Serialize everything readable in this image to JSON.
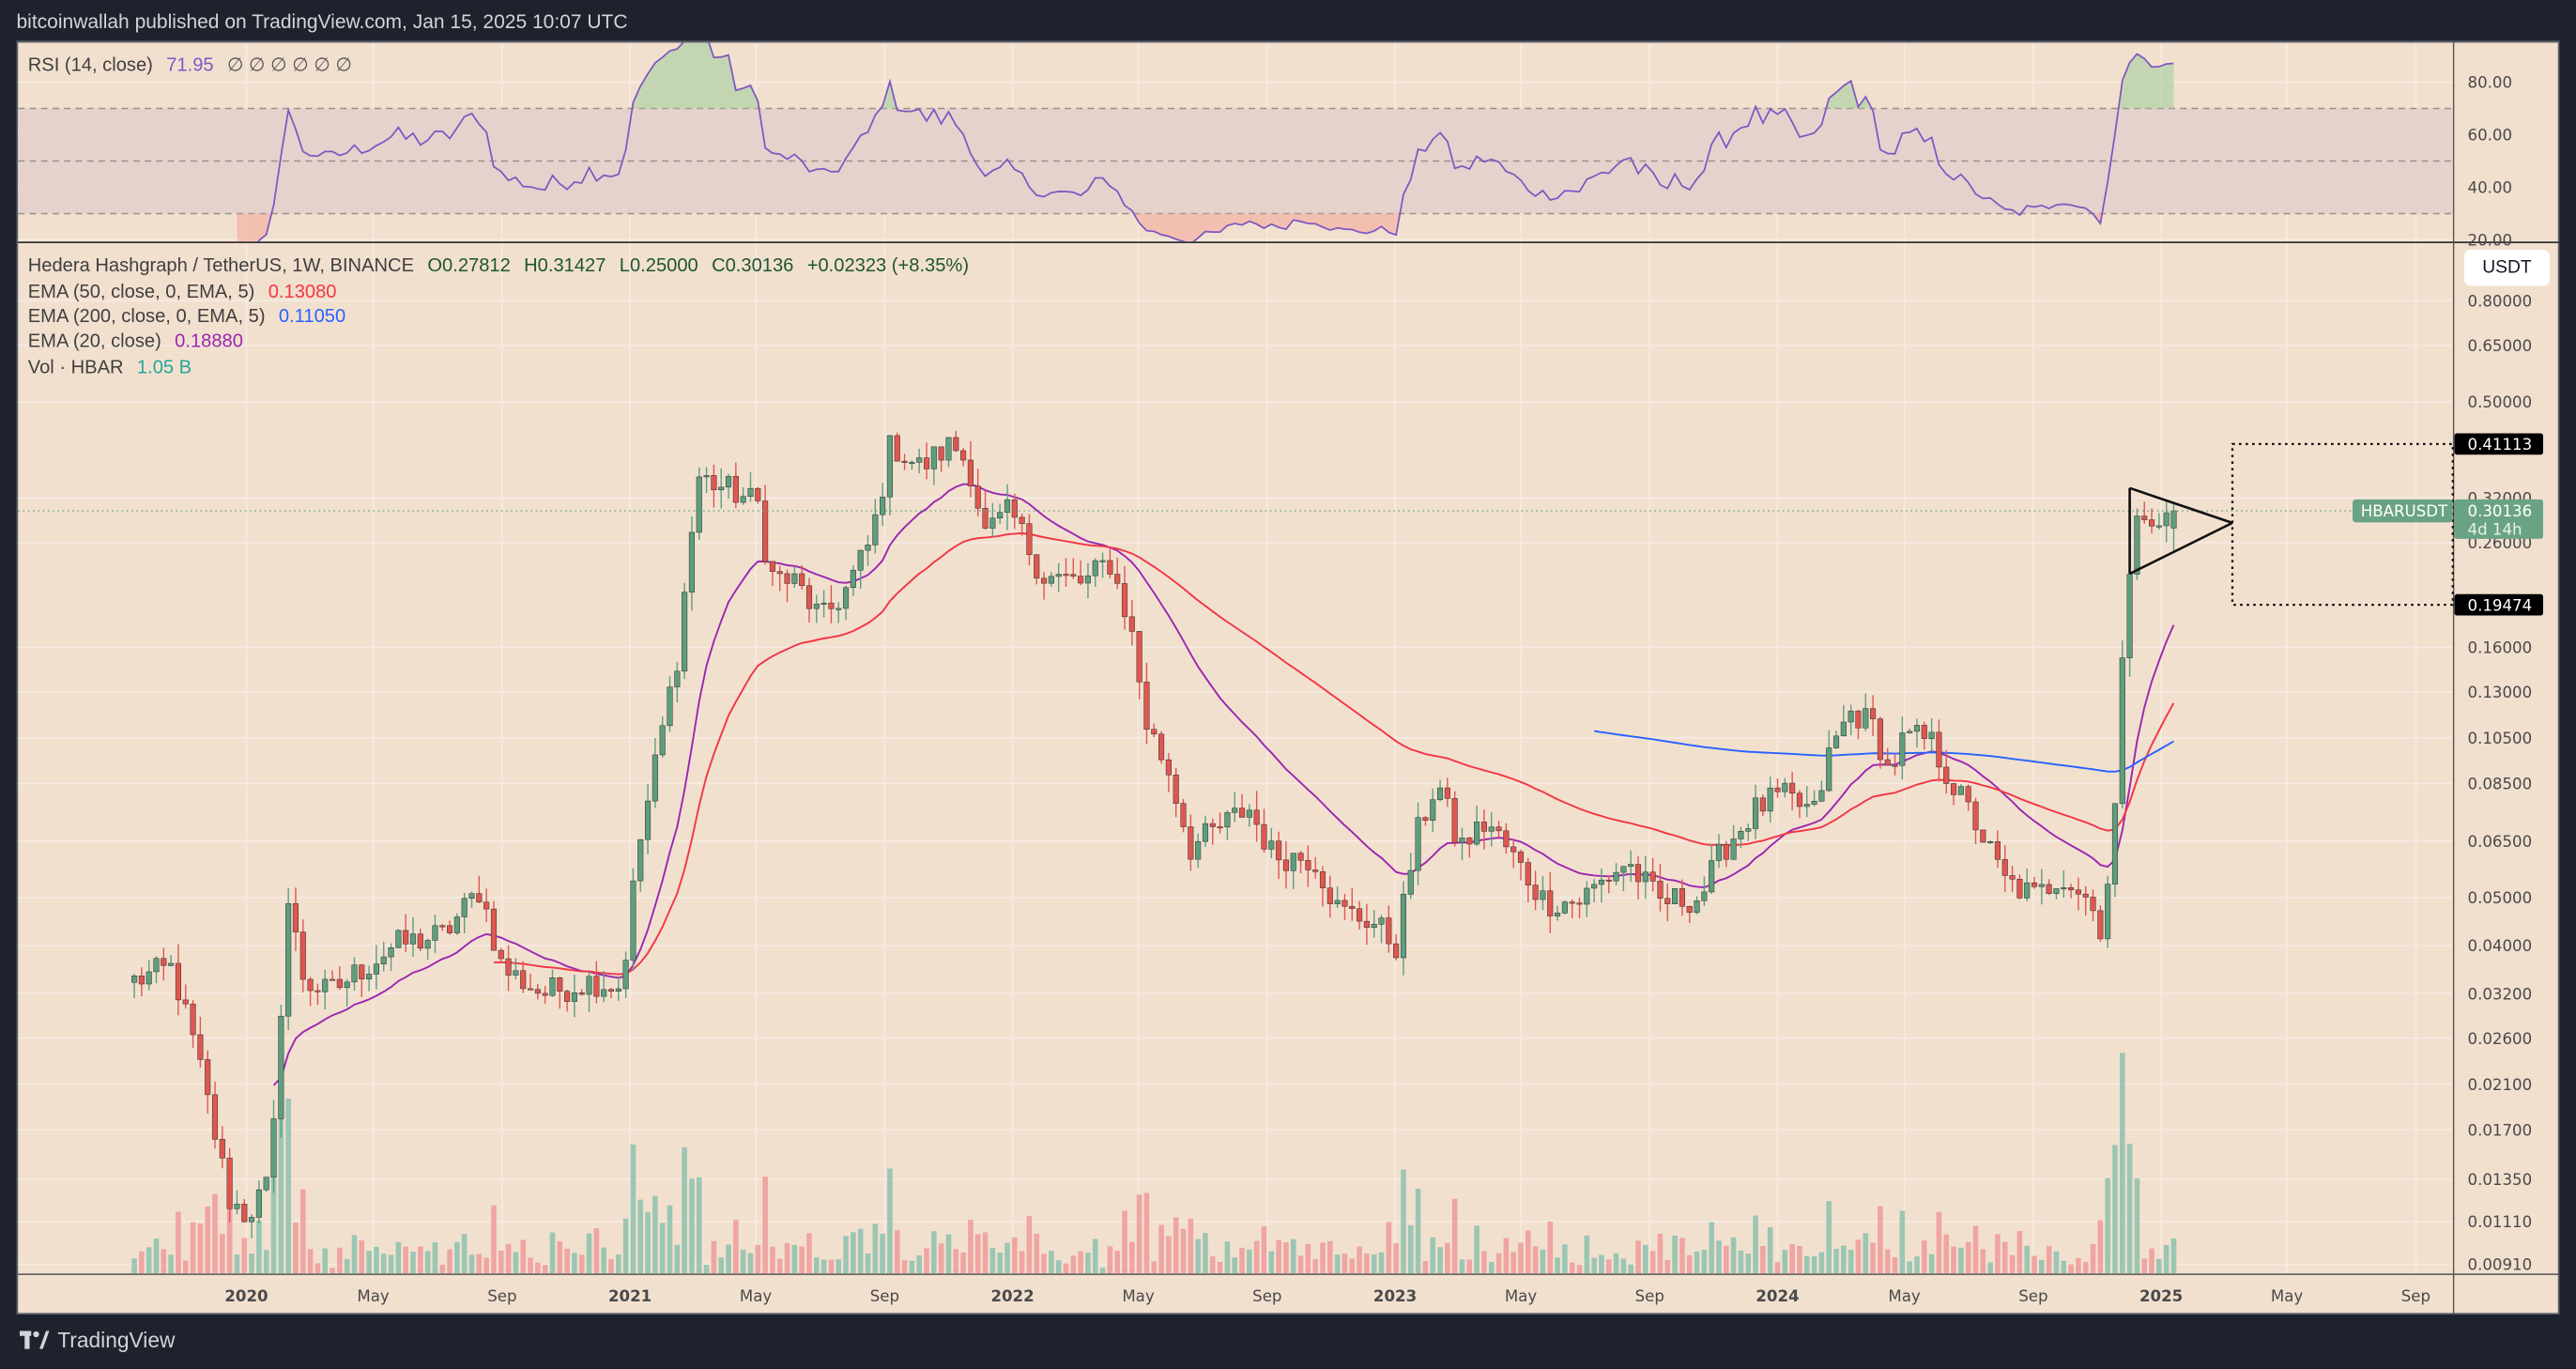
{
  "header": {
    "publisher_line": "bitcoinwallah published on TradingView.com, Jan 15, 2025 10:07 UTC"
  },
  "footer": {
    "brand": "TradingView"
  },
  "legend": {
    "rsi_label": "RSI (14, close)",
    "rsi_value": "71.95",
    "rsi_extras": "∅ ∅ ∅ ∅ ∅ ∅",
    "symbol": "Hedera Hashgraph / TetherUS, 1W, BINANCE",
    "open": "O0.27812",
    "high": "H0.31427",
    "low": "L0.25000",
    "close": "C0.30136",
    "change": "+0.02323 (+8.35%)",
    "ema50_label": "EMA (50, close, 0, EMA, 5)",
    "ema50_value": "0.13080",
    "ema200_label": "EMA (200, close, 0, EMA, 5)",
    "ema200_value": "0.11050",
    "ema20_label": "EMA (20, close)",
    "ema20_value": "0.18880",
    "vol_label": "Vol · HBAR",
    "vol_value": "1.05 B"
  },
  "currency_button": "USDT",
  "symbol_tag": "HBARUSDT",
  "last_price_tag": {
    "price": "0.30136",
    "countdown": "4d 14h"
  },
  "colors": {
    "up": "#5e9e7d",
    "down": "#e0564f",
    "ema20": "#9c27b0",
    "ema50": "#f23645",
    "ema200": "#2962ff",
    "rsi": "#7e57c2",
    "background": "#f2e0cf",
    "vol_up": "#8cc1ae",
    "vol_down": "#ef9a9a"
  },
  "chart_data": {
    "type": "candlestick",
    "symbol": "HBARUSDT",
    "interval": "1W",
    "yscale": "log",
    "price_ticks": [
      "0.80000",
      "0.65000",
      "0.50000",
      "0.32000",
      "0.26000",
      "0.16000",
      "0.13000",
      "0.10500",
      "0.08500",
      "0.06500",
      "0.05000",
      "0.04000",
      "0.03200",
      "0.02600",
      "0.02100",
      "0.01700",
      "0.01350",
      "0.01110",
      "0.00910"
    ],
    "rsi_ticks": [
      "80.00",
      "60.00",
      "40.00",
      "20.00"
    ],
    "rsi_bands": [
      70,
      50,
      30
    ],
    "time_ticks": [
      "2020",
      "May",
      "Sep",
      "2021",
      "May",
      "Sep",
      "2022",
      "May",
      "Sep",
      "2023",
      "May",
      "Sep",
      "2024",
      "May",
      "Sep",
      "2025",
      "May",
      "Sep"
    ],
    "time_tick_dates": [
      "2020-01-01",
      "2020-05-01",
      "2020-09-01",
      "2021-01-01",
      "2021-05-01",
      "2021-09-01",
      "2022-01-01",
      "2022-05-01",
      "2022-09-01",
      "2023-01-01",
      "2023-05-01",
      "2023-09-01",
      "2024-01-01",
      "2024-05-01",
      "2024-09-01",
      "2025-01-01",
      "2025-05-01",
      "2025-09-01"
    ],
    "approx_close_anchors": [
      [
        "2019-09-16",
        0.034
      ],
      [
        "2019-10-22",
        0.036
      ],
      [
        "2019-11-15",
        0.024
      ],
      [
        "2019-12-16",
        0.0123
      ],
      [
        "2020-01-01",
        0.0114
      ],
      [
        "2020-01-24",
        0.0133
      ],
      [
        "2020-02-09",
        0.05
      ],
      [
        "2020-02-25",
        0.034
      ],
      [
        "2020-03-19",
        0.032
      ],
      [
        "2020-05-21",
        0.04
      ],
      [
        "2020-07-07",
        0.042
      ],
      [
        "2020-08-11",
        0.052
      ],
      [
        "2020-09-01",
        0.036
      ],
      [
        "2020-10-10",
        0.032
      ],
      [
        "2020-11-26",
        0.034
      ],
      [
        "2020-12-24",
        0.033
      ],
      [
        "2021-01-08",
        0.061
      ],
      [
        "2021-01-27",
        0.097
      ],
      [
        "2021-02-15",
        0.153
      ],
      [
        "2021-03-07",
        0.353
      ],
      [
        "2021-04-08",
        0.33
      ],
      [
        "2021-05-04",
        0.31
      ],
      [
        "2021-05-14",
        0.224
      ],
      [
        "2021-06-09",
        0.215
      ],
      [
        "2021-07-03",
        0.181
      ],
      [
        "2021-07-26",
        0.209
      ],
      [
        "2021-08-19",
        0.262
      ],
      [
        "2021-09-07",
        0.412
      ],
      [
        "2021-10-05",
        0.368
      ],
      [
        "2021-11-05",
        0.412
      ],
      [
        "2021-11-21",
        0.37
      ],
      [
        "2021-12-06",
        0.27
      ],
      [
        "2021-12-30",
        0.3
      ],
      [
        "2022-01-30",
        0.223
      ],
      [
        "2022-03-11",
        0.215
      ],
      [
        "2022-04-03",
        0.24
      ],
      [
        "2022-04-23",
        0.178
      ],
      [
        "2022-05-09",
        0.112
      ],
      [
        "2022-05-31",
        0.089
      ],
      [
        "2022-06-20",
        0.063
      ],
      [
        "2022-07-13",
        0.068
      ],
      [
        "2022-08-14",
        0.076
      ],
      [
        "2022-09-06",
        0.061
      ],
      [
        "2022-10-16",
        0.06
      ],
      [
        "2022-11-08",
        0.047
      ],
      [
        "2022-12-09",
        0.045
      ],
      [
        "2023-01-02",
        0.04
      ],
      [
        "2023-01-21",
        0.066
      ],
      [
        "2023-02-10",
        0.086
      ],
      [
        "2023-03-03",
        0.063
      ],
      [
        "2023-03-30",
        0.071
      ],
      [
        "2023-04-22",
        0.061
      ],
      [
        "2023-05-24",
        0.049
      ],
      [
        "2023-06-24",
        0.049
      ],
      [
        "2023-08-10",
        0.059
      ],
      [
        "2023-09-10",
        0.049
      ],
      [
        "2023-10-19",
        0.05
      ],
      [
        "2023-11-11",
        0.063
      ],
      [
        "2023-12-13",
        0.076
      ],
      [
        "2024-01-05",
        0.08
      ],
      [
        "2024-02-05",
        0.074
      ],
      [
        "2024-02-21",
        0.1
      ],
      [
        "2024-03-12",
        0.119
      ],
      [
        "2024-04-03",
        0.11
      ],
      [
        "2024-04-16",
        0.089
      ],
      [
        "2024-05-01",
        0.105
      ],
      [
        "2024-05-25",
        0.104
      ],
      [
        "2024-06-18",
        0.083
      ],
      [
        "2024-07-11",
        0.069
      ],
      [
        "2024-08-04",
        0.054
      ],
      [
        "2024-09-04",
        0.05
      ],
      [
        "2024-09-28",
        0.056
      ],
      [
        "2024-10-22",
        0.05
      ],
      [
        "2024-11-06",
        0.043
      ],
      [
        "2024-11-18",
        0.076
      ],
      [
        "2024-11-29",
        0.207
      ],
      [
        "2024-12-10",
        0.327
      ],
      [
        "2024-12-23",
        0.27
      ],
      [
        "2025-01-06",
        0.293
      ],
      [
        "2025-01-13",
        0.30136
      ]
    ],
    "last_bar": {
      "open": 0.27812,
      "high": 0.31427,
      "low": 0.25,
      "close": 0.30136
    },
    "annotations": {
      "triangle": {
        "start": "2024-12-02",
        "apex": "2025-03-10",
        "upper_start": 0.335,
        "lower_start": 0.225,
        "apex_price": 0.285
      },
      "target_box": {
        "start": "2025-03-10",
        "upper": 0.41113,
        "lower": 0.19474,
        "upper_label": "0.41113",
        "lower_label": "0.19474"
      }
    }
  }
}
